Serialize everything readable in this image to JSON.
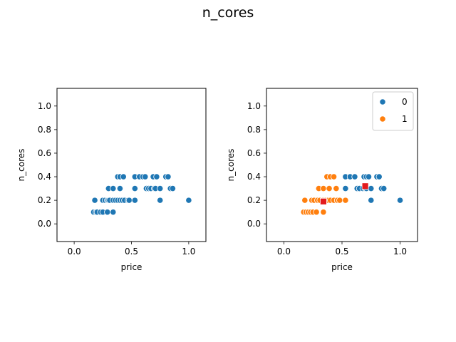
{
  "figure": {
    "suptitle": "n_cores"
  },
  "colors": {
    "cluster_0": "#1f77b4",
    "cluster_1": "#ff7f0e",
    "centroid": "#e31a1c",
    "marker_edge": "#ffffff"
  },
  "chart_data": [
    {
      "type": "scatter",
      "xlabel": "price",
      "ylabel": "n_cores",
      "xlim": [
        -0.15,
        1.15
      ],
      "ylim": [
        -0.15,
        1.15
      ],
      "xticks": [
        0.0,
        0.5,
        1.0
      ],
      "yticks": [
        0.0,
        0.2,
        0.4,
        0.6,
        0.8,
        1.0
      ],
      "xtick_labels": [
        "0.0",
        "0.5",
        "1.0"
      ],
      "ytick_labels": [
        "0.0",
        "0.2",
        "0.4",
        "0.6",
        "0.8",
        "1.0"
      ],
      "grid": false,
      "series": [
        {
          "color": "#1f77b4",
          "points": [
            [
              0.17,
              0.1
            ],
            [
              0.19,
              0.1
            ],
            [
              0.2,
              0.1
            ],
            [
              0.23,
              0.1
            ],
            [
              0.25,
              0.1
            ],
            [
              0.29,
              0.1
            ],
            [
              0.34,
              0.1
            ],
            [
              0.18,
              0.2
            ],
            [
              0.25,
              0.2
            ],
            [
              0.27,
              0.2
            ],
            [
              0.29,
              0.2
            ],
            [
              0.3,
              0.2
            ],
            [
              0.31,
              0.2
            ],
            [
              0.34,
              0.2
            ],
            [
              0.36,
              0.2
            ],
            [
              0.38,
              0.2
            ],
            [
              0.4,
              0.2
            ],
            [
              0.42,
              0.2
            ],
            [
              0.44,
              0.2
            ],
            [
              0.47,
              0.2
            ],
            [
              0.48,
              0.2
            ],
            [
              0.53,
              0.2
            ],
            [
              0.75,
              0.2
            ],
            [
              1.0,
              0.2
            ],
            [
              0.3,
              0.3
            ],
            [
              0.34,
              0.3
            ],
            [
              0.4,
              0.3
            ],
            [
              0.53,
              0.3
            ],
            [
              0.63,
              0.3
            ],
            [
              0.65,
              0.3
            ],
            [
              0.67,
              0.3
            ],
            [
              0.7,
              0.3
            ],
            [
              0.71,
              0.3
            ],
            [
              0.75,
              0.3
            ],
            [
              0.84,
              0.3
            ],
            [
              0.86,
              0.3
            ],
            [
              0.38,
              0.4
            ],
            [
              0.4,
              0.4
            ],
            [
              0.43,
              0.4
            ],
            [
              0.53,
              0.4
            ],
            [
              0.57,
              0.4
            ],
            [
              0.6,
              0.4
            ],
            [
              0.62,
              0.4
            ],
            [
              0.69,
              0.4
            ],
            [
              0.72,
              0.4
            ],
            [
              0.8,
              0.4
            ],
            [
              0.82,
              0.4
            ]
          ]
        }
      ]
    },
    {
      "type": "scatter",
      "xlabel": "price",
      "ylabel": "n_cores",
      "xlim": [
        -0.15,
        1.15
      ],
      "ylim": [
        -0.15,
        1.15
      ],
      "xticks": [
        0.0,
        0.5,
        1.0
      ],
      "yticks": [
        0.0,
        0.2,
        0.4,
        0.6,
        0.8,
        1.0
      ],
      "xtick_labels": [
        "0.0",
        "0.5",
        "1.0"
      ],
      "ytick_labels": [
        "0.0",
        "0.2",
        "0.4",
        "0.6",
        "0.8",
        "1.0"
      ],
      "grid": false,
      "legend": {
        "placement": "top-right",
        "entries": [
          "0",
          "1"
        ]
      },
      "series": [
        {
          "name": "0",
          "color": "#1f77b4",
          "points": [
            [
              0.53,
              0.4
            ],
            [
              0.57,
              0.4
            ],
            [
              0.61,
              0.4
            ],
            [
              0.69,
              0.4
            ],
            [
              0.71,
              0.4
            ],
            [
              0.73,
              0.4
            ],
            [
              0.8,
              0.4
            ],
            [
              0.82,
              0.4
            ],
            [
              0.53,
              0.3
            ],
            [
              0.63,
              0.3
            ],
            [
              0.65,
              0.3
            ],
            [
              0.68,
              0.3
            ],
            [
              0.7,
              0.3
            ],
            [
              0.71,
              0.3
            ],
            [
              0.75,
              0.3
            ],
            [
              0.84,
              0.3
            ],
            [
              0.86,
              0.3
            ],
            [
              0.75,
              0.2
            ],
            [
              1.0,
              0.2
            ]
          ]
        },
        {
          "name": "1",
          "color": "#ff7f0e",
          "points": [
            [
              0.17,
              0.1
            ],
            [
              0.19,
              0.1
            ],
            [
              0.21,
              0.1
            ],
            [
              0.23,
              0.1
            ],
            [
              0.25,
              0.1
            ],
            [
              0.28,
              0.1
            ],
            [
              0.34,
              0.1
            ],
            [
              0.18,
              0.2
            ],
            [
              0.24,
              0.2
            ],
            [
              0.26,
              0.2
            ],
            [
              0.29,
              0.2
            ],
            [
              0.31,
              0.2
            ],
            [
              0.34,
              0.2
            ],
            [
              0.36,
              0.2
            ],
            [
              0.38,
              0.2
            ],
            [
              0.4,
              0.2
            ],
            [
              0.43,
              0.2
            ],
            [
              0.46,
              0.2
            ],
            [
              0.48,
              0.2
            ],
            [
              0.53,
              0.2
            ],
            [
              0.3,
              0.3
            ],
            [
              0.34,
              0.3
            ],
            [
              0.39,
              0.3
            ],
            [
              0.45,
              0.3
            ],
            [
              0.37,
              0.4
            ],
            [
              0.4,
              0.4
            ],
            [
              0.43,
              0.4
            ]
          ]
        }
      ],
      "centroids": {
        "color": "#e31a1c",
        "points": [
          [
            0.7,
            0.32
          ],
          [
            0.34,
            0.19
          ]
        ]
      }
    }
  ]
}
